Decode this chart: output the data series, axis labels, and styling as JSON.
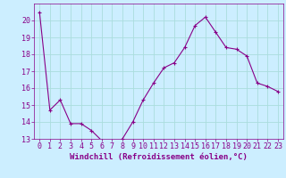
{
  "x": [
    0,
    1,
    2,
    3,
    4,
    5,
    6,
    7,
    8,
    9,
    10,
    11,
    12,
    13,
    14,
    15,
    16,
    17,
    18,
    19,
    20,
    21,
    22,
    23
  ],
  "y": [
    20.5,
    14.7,
    15.3,
    13.9,
    13.9,
    13.5,
    12.9,
    12.7,
    13.0,
    14.0,
    15.3,
    16.3,
    17.2,
    17.5,
    18.4,
    19.7,
    20.2,
    19.3,
    18.4,
    18.3,
    17.9,
    16.3,
    16.1,
    15.8
  ],
  "line_color": "#880088",
  "marker": "+",
  "bg_color": "#cceeff",
  "grid_color": "#aadddd",
  "xlabel": "Windchill (Refroidissement éolien,°C)",
  "ylim": [
    13,
    21
  ],
  "xlim": [
    -0.5,
    23.5
  ],
  "yticks": [
    13,
    14,
    15,
    16,
    17,
    18,
    19,
    20
  ],
  "xticks": [
    0,
    1,
    2,
    3,
    4,
    5,
    6,
    7,
    8,
    9,
    10,
    11,
    12,
    13,
    14,
    15,
    16,
    17,
    18,
    19,
    20,
    21,
    22,
    23
  ],
  "label_color": "#880088",
  "tick_color": "#880088",
  "axis_color": "#880088",
  "xlabel_fontsize": 6.5,
  "tick_fontsize": 6,
  "linewidth": 0.8,
  "markersize": 3,
  "markerwidth": 0.8
}
